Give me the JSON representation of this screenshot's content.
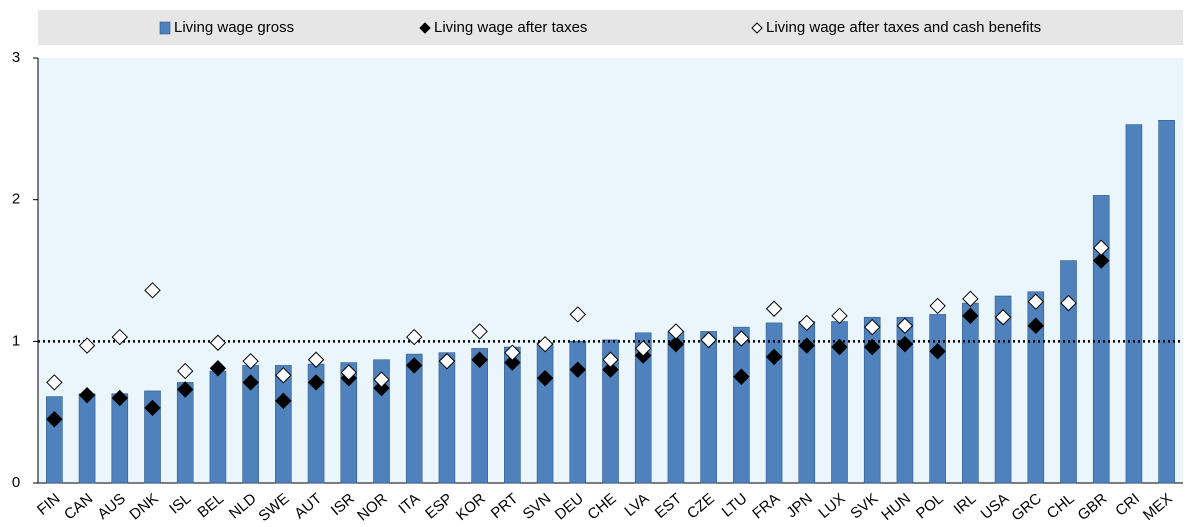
{
  "chart_data": {
    "type": "bar",
    "categories": [
      "FIN",
      "CAN",
      "AUS",
      "DNK",
      "ISL",
      "BEL",
      "NLD",
      "SWE",
      "AUT",
      "ISR",
      "NOR",
      "ITA",
      "ESP",
      "KOR",
      "PRT",
      "SVN",
      "DEU",
      "CHE",
      "LVA",
      "EST",
      "CZE",
      "LTU",
      "FRA",
      "JPN",
      "LUX",
      "SVK",
      "HUN",
      "POL",
      "IRL",
      "USA",
      "GRC",
      "CHL",
      "GBR",
      "CRI",
      "MEX"
    ],
    "series": [
      {
        "name": "Living wage gross",
        "color": "#4f81bd",
        "marker": "bar",
        "values": [
          0.61,
          0.63,
          0.63,
          0.65,
          0.71,
          0.79,
          0.83,
          0.83,
          0.84,
          0.85,
          0.87,
          0.91,
          0.92,
          0.95,
          0.96,
          0.99,
          1.0,
          1.01,
          1.06,
          1.07,
          1.07,
          1.1,
          1.13,
          1.14,
          1.14,
          1.17,
          1.17,
          1.19,
          1.27,
          1.32,
          1.35,
          1.57,
          2.03,
          2.53,
          2.56
        ]
      },
      {
        "name": "Living wage after taxes",
        "color": "#000000",
        "marker": "diamond-filled",
        "values": [
          0.45,
          0.62,
          0.6,
          0.53,
          0.66,
          0.81,
          0.71,
          0.58,
          0.71,
          0.74,
          0.67,
          0.83,
          0.86,
          0.87,
          0.85,
          0.74,
          0.8,
          0.8,
          0.9,
          0.98,
          1.01,
          0.75,
          0.89,
          0.97,
          0.96,
          0.96,
          0.98,
          0.93,
          1.18,
          null,
          1.11,
          1.27,
          1.57,
          null,
          null
        ]
      },
      {
        "name": "Living wage after taxes and cash benefits",
        "color": "#ffffff",
        "marker": "diamond-open",
        "values": [
          0.71,
          0.97,
          1.03,
          1.36,
          0.79,
          0.99,
          0.86,
          0.76,
          0.87,
          0.78,
          0.73,
          1.03,
          0.86,
          1.07,
          0.92,
          0.98,
          1.19,
          0.87,
          0.95,
          1.07,
          1.01,
          1.02,
          1.23,
          1.13,
          1.18,
          1.1,
          1.11,
          1.25,
          1.3,
          1.17,
          1.28,
          1.27,
          1.66,
          null,
          null
        ]
      }
    ],
    "ylim": [
      0,
      3
    ],
    "yticks": [
      0,
      1,
      2,
      3
    ],
    "reference_line": 1,
    "grid": false
  }
}
